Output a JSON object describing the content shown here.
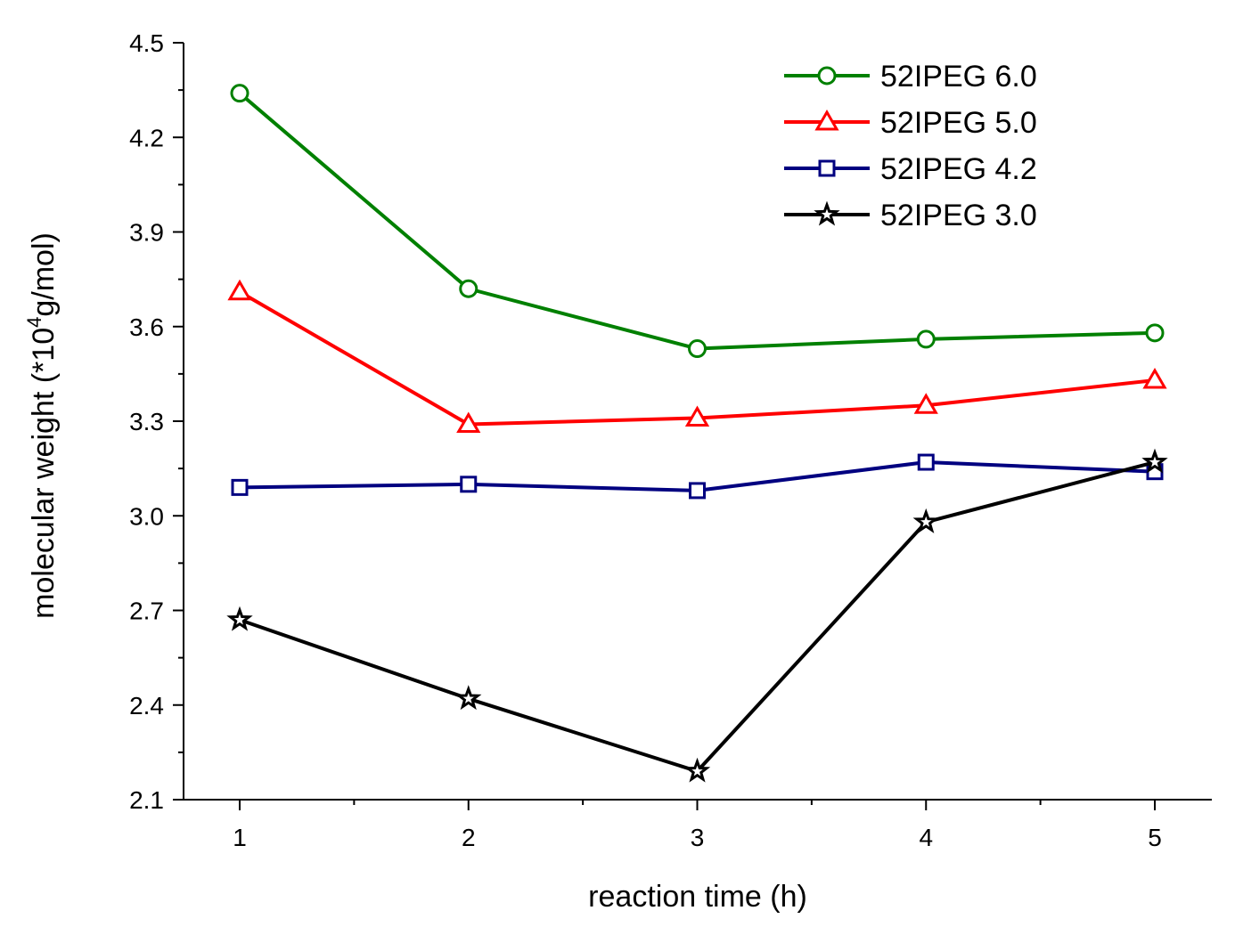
{
  "chart_data": {
    "type": "line",
    "title": "",
    "xlabel": "reaction time (h)",
    "ylabel_main": "molecular weight  (*10",
    "ylabel_sup": "4",
    "ylabel_tail": "g/mol)",
    "x": [
      1,
      2,
      3,
      4,
      5
    ],
    "xlim": [
      0.75,
      5.25
    ],
    "ylim": [
      2.1,
      4.5
    ],
    "xticks": [
      "1",
      "2",
      "3",
      "4",
      "5"
    ],
    "yticks": [
      "2.1",
      "2.4",
      "2.7",
      "3.0",
      "3.3",
      "3.6",
      "3.9",
      "4.2",
      "4.5"
    ],
    "ytick_values": [
      2.1,
      2.4,
      2.7,
      3.0,
      3.3,
      3.6,
      3.9,
      4.2,
      4.5
    ],
    "legend_position": "top-right",
    "series": [
      {
        "name": "52IPEG 6.0",
        "color": "#008000",
        "marker": "circle",
        "values": [
          4.34,
          3.72,
          3.53,
          3.56,
          3.58
        ]
      },
      {
        "name": "52IPEG 5.0",
        "color": "#ff0000",
        "marker": "triangle",
        "values": [
          3.71,
          3.29,
          3.31,
          3.35,
          3.43
        ]
      },
      {
        "name": "52IPEG 4.2",
        "color": "#000080",
        "marker": "square",
        "values": [
          3.09,
          3.1,
          3.08,
          3.17,
          3.14
        ]
      },
      {
        "name": "52IPEG 3.0",
        "color": "#000000",
        "marker": "star",
        "values": [
          2.67,
          2.42,
          2.19,
          2.98,
          3.17
        ]
      }
    ]
  }
}
